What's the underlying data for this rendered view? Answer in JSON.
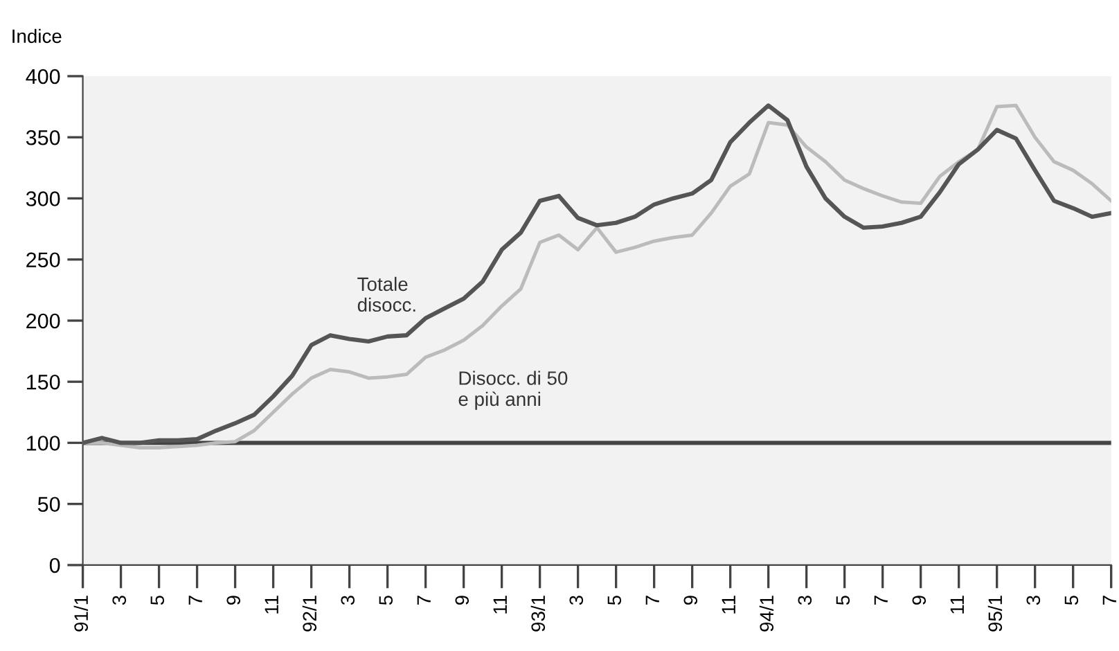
{
  "chart_data": {
    "type": "line",
    "ylabel": "Indice",
    "categories": [
      "91/1",
      null,
      "3",
      null,
      "5",
      null,
      "7",
      null,
      "9",
      null,
      "11",
      null,
      "92/1",
      null,
      "3",
      null,
      "5",
      null,
      "7",
      null,
      "9",
      null,
      "11",
      null,
      "93/1",
      null,
      "3",
      null,
      "5",
      null,
      "7",
      null,
      "9",
      null,
      "11",
      null,
      "94/1",
      null,
      "3",
      null,
      "5",
      null,
      "7",
      null,
      "9",
      null,
      "11",
      null,
      "95/1",
      null,
      "3",
      null,
      "5",
      null,
      "7"
    ],
    "series": [
      {
        "name": "Totale\ndisocc.",
        "color": "#555555",
        "values": [
          100,
          104,
          100,
          100,
          102,
          102,
          103,
          110,
          116,
          123,
          138,
          155,
          180,
          188,
          185,
          183,
          187,
          188,
          202,
          210,
          218,
          232,
          258,
          272,
          298,
          302,
          284,
          278,
          280,
          285,
          295,
          300,
          304,
          315,
          346,
          362,
          376,
          364,
          326,
          300,
          285,
          276,
          277,
          280,
          285,
          305,
          328,
          340,
          356,
          349,
          323,
          298,
          292,
          285,
          288
        ]
      },
      {
        "name": "Disocc. di 50\ne più anni",
        "color": "#bbbbbb",
        "values": [
          100,
          100,
          98,
          96,
          96,
          97,
          98,
          100,
          101,
          110,
          125,
          140,
          153,
          160,
          158,
          153,
          154,
          156,
          170,
          176,
          184,
          196,
          212,
          226,
          264,
          270,
          258,
          276,
          256,
          260,
          265,
          268,
          270,
          288,
          310,
          320,
          362,
          360,
          342,
          330,
          315,
          308,
          302,
          297,
          296,
          318,
          330,
          340,
          375,
          376,
          350,
          330,
          323,
          312,
          298
        ]
      }
    ],
    "ylim": [
      0,
      400
    ],
    "yticks": [
      0,
      50,
      100,
      150,
      200,
      250,
      300,
      350,
      400
    ],
    "ref_lines": [
      {
        "axis": "y",
        "value": 100,
        "color": "#444444"
      }
    ],
    "grid": false,
    "legend": false,
    "marker": "none",
    "line_style": "solid"
  }
}
